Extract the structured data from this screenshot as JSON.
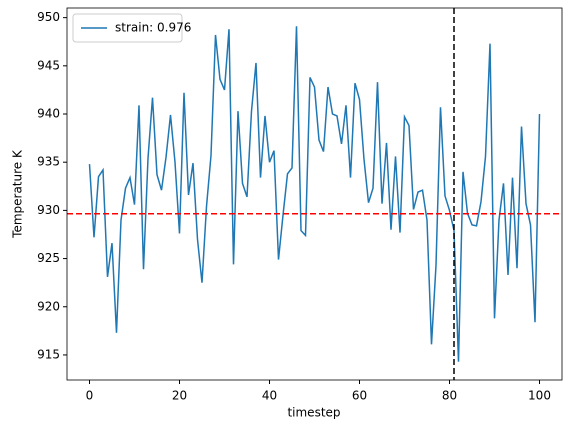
{
  "chart_data": {
    "type": "line",
    "xlabel": "timestep",
    "ylabel": "Temperature K",
    "x": [
      0,
      1,
      2,
      3,
      4,
      5,
      6,
      7,
      8,
      9,
      10,
      11,
      12,
      13,
      14,
      15,
      16,
      17,
      18,
      19,
      20,
      21,
      22,
      23,
      24,
      25,
      26,
      27,
      28,
      29,
      30,
      31,
      32,
      33,
      34,
      35,
      36,
      37,
      38,
      39,
      40,
      41,
      42,
      43,
      44,
      45,
      46,
      47,
      48,
      49,
      50,
      51,
      52,
      53,
      54,
      55,
      56,
      57,
      58,
      59,
      60,
      61,
      62,
      63,
      64,
      65,
      66,
      67,
      68,
      69,
      70,
      71,
      72,
      73,
      74,
      75,
      76,
      77,
      78,
      79,
      80,
      81,
      82,
      83,
      84,
      85,
      86,
      87,
      88,
      89,
      90,
      91,
      92,
      93,
      94,
      95,
      96,
      97,
      98,
      99,
      100
    ],
    "series": [
      {
        "name": "strain: 0.976",
        "color": "#1f77b4",
        "values": [
          934.8,
          927.2,
          933.5,
          934.2,
          923.1,
          926.6,
          917.3,
          929.0,
          932.3,
          933.4,
          930.6,
          940.9,
          923.9,
          935.4,
          941.7,
          933.7,
          932.1,
          935.5,
          939.9,
          935.0,
          927.6,
          942.2,
          931.6,
          934.9,
          927.0,
          922.5,
          930.4,
          935.7,
          948.2,
          943.6,
          942.5,
          948.8,
          924.4,
          940.3,
          932.8,
          931.4,
          940.3,
          945.3,
          933.4,
          939.8,
          935.0,
          936.2,
          924.9,
          929.5,
          933.8,
          934.4,
          949.1,
          927.9,
          927.4,
          943.8,
          942.8,
          937.3,
          936.1,
          942.8,
          940.0,
          939.8,
          936.9,
          940.9,
          933.4,
          943.2,
          941.5,
          935.3,
          930.8,
          932.3,
          943.3,
          930.7,
          937.0,
          928.0,
          935.6,
          927.7,
          939.7,
          938.8,
          930.1,
          931.9,
          932.1,
          929.0,
          916.1,
          924.3,
          940.7,
          931.5,
          930.0,
          927.9,
          914.3,
          934.0,
          929.7,
          928.5,
          928.4,
          930.9,
          935.6,
          947.3,
          918.8,
          929.0,
          932.8,
          923.3,
          933.4,
          924.0,
          938.7,
          930.7,
          928.5,
          918.4,
          940.0
        ]
      }
    ],
    "hline": 929.65,
    "hline_color": "#ff0000",
    "vline": 81,
    "vline_color": "#000000",
    "xlim": [
      -5,
      105
    ],
    "xticks": [
      0,
      20,
      40,
      60,
      80,
      100
    ],
    "ylim": [
      912.4,
      951.0
    ],
    "yticks": [
      915,
      920,
      925,
      930,
      935,
      940,
      945,
      950
    ],
    "legend": "upper left"
  }
}
